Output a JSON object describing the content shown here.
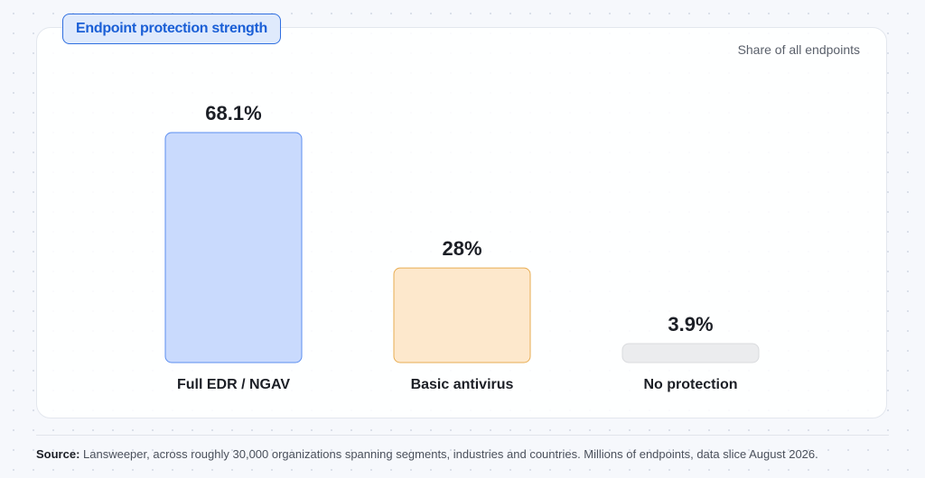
{
  "chart_data": {
    "type": "bar",
    "title": "Endpoint protection strength",
    "subtitle": "Share of all endpoints",
    "categories": [
      "Full EDR / NGAV",
      "Basic antivirus",
      "No protection"
    ],
    "values": [
      68.1,
      28,
      3.9
    ],
    "value_labels": [
      "68.1%",
      "28%",
      "3.9%"
    ],
    "ylim": [
      0,
      68.1
    ],
    "grid": false,
    "colors": {
      "fill": [
        "#c9dafd",
        "#fde8cc",
        "#ebecee"
      ],
      "stroke": [
        "#5b8ef0",
        "#e8ad52",
        "#d9dbde"
      ]
    }
  },
  "footer": {
    "source_label": "Source:",
    "source_text": " Lansweeper, across roughly 30,000 organizations spanning segments, industries and countries. Millions of endpoints, data slice August 2026."
  }
}
